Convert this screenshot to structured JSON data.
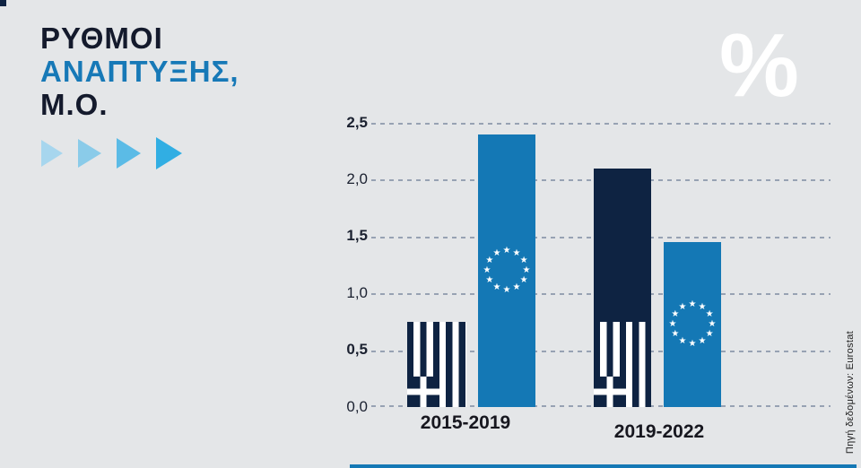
{
  "background": "#e4e6e8",
  "colors": {
    "navy": "#0e2342",
    "blue": "#1478b5",
    "title_dark": "#141a2c",
    "title_blue": "#1779b7",
    "gridline": "#97a2b3",
    "percent_white": "#ffffff",
    "arrow_shades": [
      "#a7d6ee",
      "#8acbe9",
      "#5bbbe6",
      "#31aee3"
    ]
  },
  "header": {
    "title_line1": "ΡΥΘΜΟΙ",
    "title_line2": "ΑΝΑΠΤΥΞΗΣ,",
    "title_line3": "Μ.Ο.",
    "percent_symbol": "%"
  },
  "icons": {
    "percent": "percent-icon",
    "arrows": "right-triangle-arrow-icon",
    "greece_bar": "greek-flag-icon",
    "eu_bar": "eu-circle-of-stars-icon"
  },
  "chart_data": {
    "type": "bar",
    "title": "ΡΥΘΜΟΙ ΑΝΑΠΤΥΞΗΣ, Μ.Ο.",
    "unit": "%",
    "categories": [
      "2015-2019",
      "2019-2022"
    ],
    "series": [
      {
        "name": "Ελλάδα",
        "flag": "greek-flag",
        "color": "#0e2342",
        "values": [
          0.75,
          2.1
        ]
      },
      {
        "name": "Ευρωπαϊκή Ένωση",
        "flag": "eu-stars",
        "color": "#1478b5",
        "values": [
          2.4,
          1.45
        ]
      }
    ],
    "ylim": [
      0,
      2.5
    ],
    "ytick_labels": [
      "2,5",
      "2,0",
      "1,5",
      "1,0",
      "0,5",
      "0,0"
    ],
    "grid": "dashed horizontal",
    "legend": "none"
  },
  "source": {
    "label": "Πηγή δεδομένων: Eurostat"
  }
}
